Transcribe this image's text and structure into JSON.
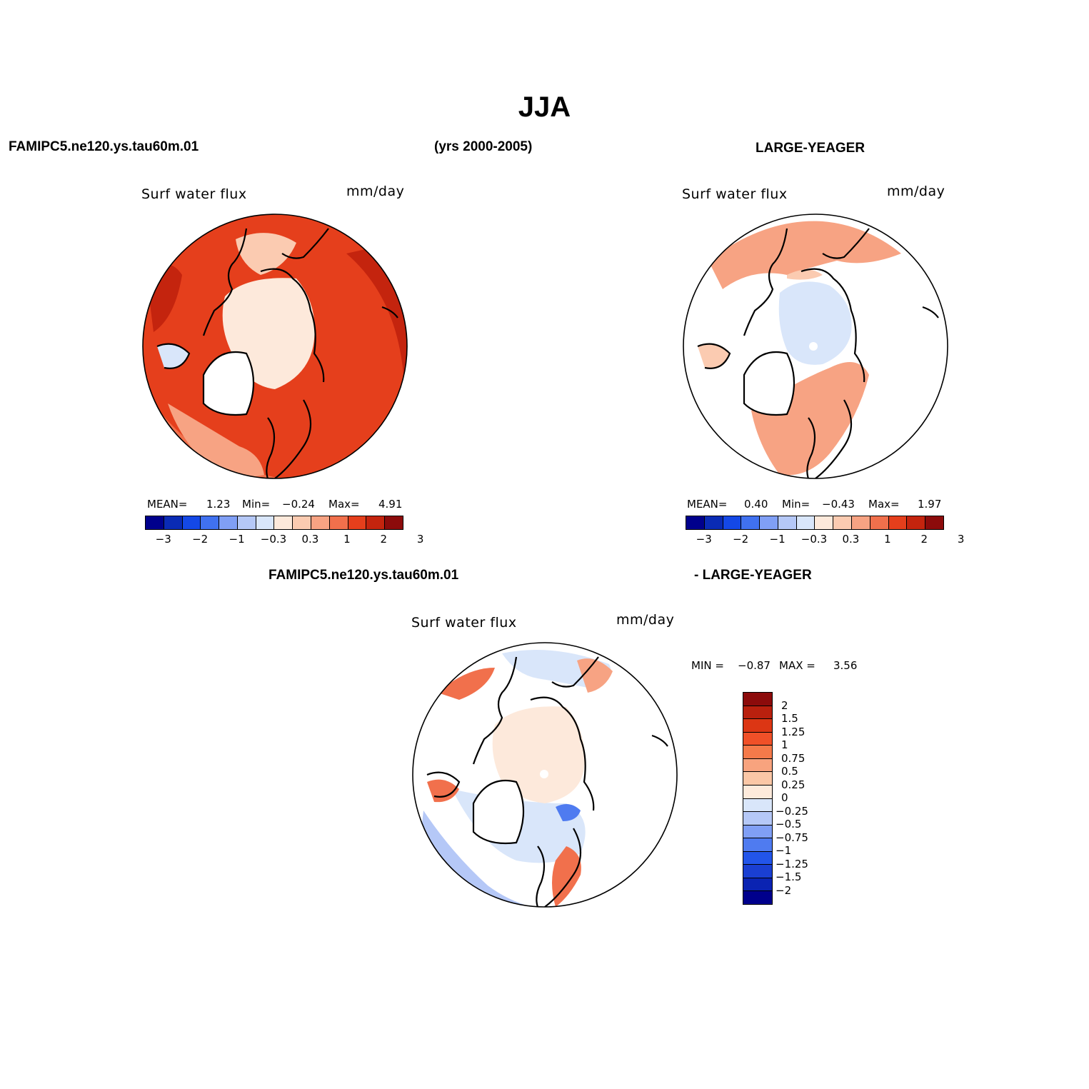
{
  "figure": {
    "title": "JJA",
    "case_name": "FAMIPC5.ne120.ys.tau60m.01",
    "years": "(yrs 2000-2005)",
    "obs_name": "LARGE-YEAGER",
    "diff_left": "FAMIPC5.ne120.ys.tau60m.01",
    "diff_right": "- LARGE-YEAGER"
  },
  "panels": {
    "model": {
      "variable": "Surf water flux",
      "units": "mm/day",
      "mean_label": "MEAN=",
      "mean": "1.23",
      "min_label": "Min=",
      "min": "−0.24",
      "max_label": "Max=",
      "max": "4.91"
    },
    "obs": {
      "variable": "Surf water flux",
      "units": "mm/day",
      "mean_label": "MEAN=",
      "mean": "0.40",
      "min_label": "Min=",
      "min": "−0.43",
      "max_label": "Max=",
      "max": "1.97"
    },
    "diff": {
      "variable": "Surf water flux",
      "units": "mm/day",
      "min_label": "MIN =",
      "min": "−0.87",
      "max_label": "MAX =",
      "max": "3.56"
    }
  },
  "colorbars": {
    "main": {
      "colors": [
        "#00008c",
        "#0a2bb5",
        "#1448e6",
        "#4071f0",
        "#809ff5",
        "#b5c8f7",
        "#d9e6fa",
        "#fde9db",
        "#fbcbb1",
        "#f7a383",
        "#f1704c",
        "#e53f1c",
        "#c4240e",
        "#8c0b0b"
      ],
      "tick_labels": [
        "−3",
        "−2",
        "−1",
        "−0.3",
        "0.3",
        "1",
        "2",
        "3"
      ]
    },
    "diff": {
      "colors": [
        "#8c0b0b",
        "#b9200e",
        "#dc3614",
        "#f05028",
        "#f57a4a",
        "#f8a37e",
        "#fbc7a6",
        "#fdeadb",
        "#d9e6fa",
        "#b5c8f7",
        "#809ff5",
        "#4f7bf0",
        "#2255ea",
        "#1a3fd2",
        "#0a23b2",
        "#00008c"
      ],
      "tick_labels": [
        "2",
        "1.5",
        "1.25",
        "1",
        "0.75",
        "0.5",
        "0.25",
        "0",
        "−0.25",
        "−0.5",
        "−0.75",
        "−1",
        "−1.25",
        "−1.5",
        "−2"
      ]
    }
  },
  "map_colors": {
    "white": "#ffffff",
    "pale_peach": "#fde9db",
    "light_peach": "#fbcbb1",
    "salmon": "#f7a383",
    "orange": "#f1704c",
    "red_orange": "#e53f1c",
    "dark_red": "#c4240e",
    "pale_blue": "#d9e6fa",
    "light_blue": "#b5c8f7",
    "mid_blue": "#809ff5",
    "blue": "#4f7bf0"
  }
}
